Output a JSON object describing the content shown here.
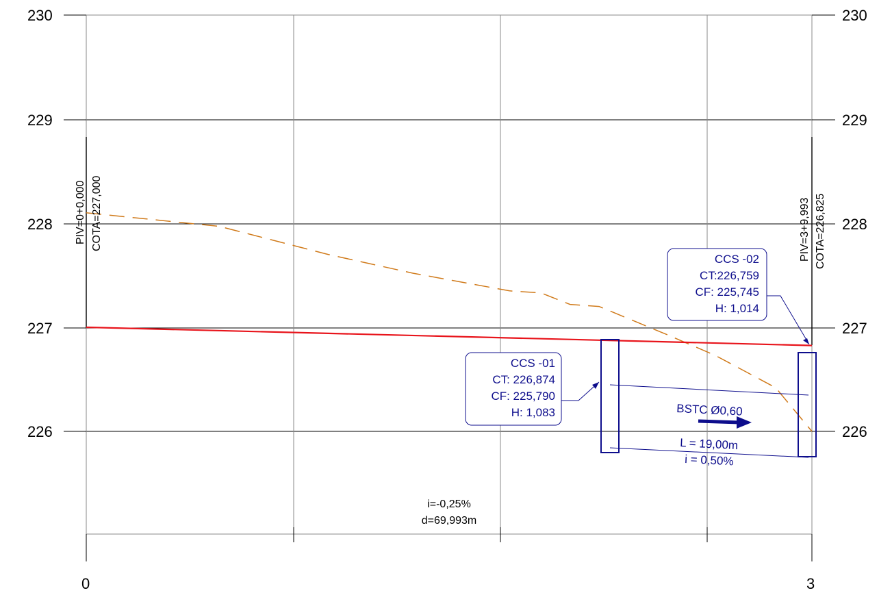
{
  "colors": {
    "grid": "#8a8a8a",
    "major_line": "#000000",
    "terrain": "#d07a1a",
    "grade": "#e8141b",
    "annotation": "#0d0d8c",
    "text": "#000000"
  },
  "chart_data": {
    "type": "line",
    "y_axis": {
      "ticks": [
        "230",
        "229",
        "228",
        "227",
        "226"
      ],
      "ylim": [
        225,
        230
      ]
    },
    "x_axis": {
      "ticks": [
        "0",
        "3"
      ]
    },
    "series": [
      {
        "role": "terrain-dashed",
        "points": [
          [
            0,
            228.1
          ],
          [
            0.55,
            227.97
          ],
          [
            1.0,
            227.7
          ],
          [
            1.35,
            227.52
          ],
          [
            1.75,
            227.35
          ],
          [
            1.88,
            227.33
          ],
          [
            2.0,
            227.22
          ],
          [
            2.12,
            227.2
          ],
          [
            2.4,
            226.93
          ],
          [
            2.6,
            226.73
          ],
          [
            2.85,
            226.42
          ],
          [
            3.0,
            226.0
          ]
        ]
      },
      {
        "role": "grade-line",
        "points": [
          [
            0,
            227.0
          ],
          [
            3.0,
            226.825
          ]
        ]
      }
    ],
    "piv_start": {
      "line1": "PIV=0+0,000",
      "line2": "COTA=227,000"
    },
    "piv_end": {
      "line1": "PIV=3+9,993",
      "line2": "COTA=226,825"
    },
    "chambers": [
      {
        "name": "CCS -01",
        "ct": "CT: 226,874",
        "cf": "CF: 225,790",
        "h": "H: 1,083"
      },
      {
        "name": "CCS -02",
        "ct": "CT:226,759",
        "cf": "CF: 225,745",
        "h": "H: 1,014"
      }
    ],
    "pipe": {
      "label": "BSTC Ø0,60",
      "length": "L = 19,00m",
      "slope": "i = 0,50%"
    },
    "grade_slope": {
      "slope": "i=-0,25%",
      "distance": "d=69,993m"
    }
  }
}
